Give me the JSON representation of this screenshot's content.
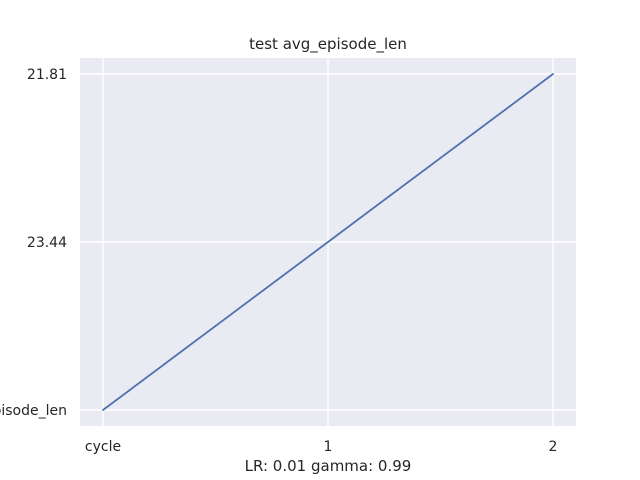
{
  "chart_data": {
    "type": "line",
    "title": "test avg_episode_len",
    "xlabel": "LR: 0.01 gamma: 0.99",
    "ylabel": "",
    "categories": [
      "cycle",
      "1",
      "2"
    ],
    "y_tick_labels": [
      "episode_len",
      "23.44",
      "21.81"
    ],
    "series": [
      {
        "values": [
          "episode_len",
          "23.44",
          "21.81"
        ],
        "color": "#4c72b0"
      }
    ],
    "grid": true,
    "background": "#eaeaf2",
    "gridline_color": "#ffffff"
  }
}
